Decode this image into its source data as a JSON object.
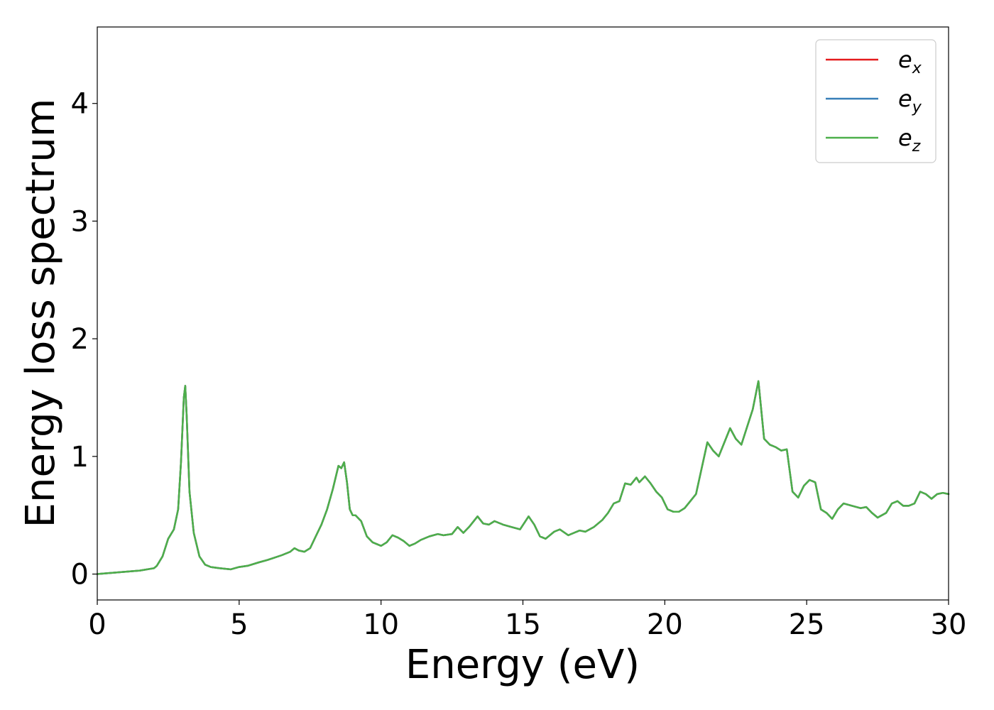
{
  "chart_data": {
    "type": "line",
    "xlabel": "Energy (eV)",
    "ylabel": "Energy loss spectrum",
    "xlim": [
      0,
      30
    ],
    "ylim": [
      -0.22,
      4.65
    ],
    "xticks": [
      0,
      5,
      10,
      15,
      20,
      25,
      30
    ],
    "yticks": [
      0,
      1,
      2,
      3,
      4
    ],
    "grid": false,
    "legend_position": "top-right",
    "series": [
      {
        "name": "e",
        "subscript": "x",
        "color": "#e41a1c"
      },
      {
        "name": "e",
        "subscript": "y",
        "color": "#377eb8"
      },
      {
        "name": "e",
        "subscript": "z",
        "color": "#4daf4a"
      }
    ],
    "x": [
      0,
      0.5,
      1,
      1.5,
      2,
      2.1,
      2.3,
      2.5,
      2.7,
      2.85,
      2.95,
      3.05,
      3.1,
      3.15,
      3.25,
      3.4,
      3.6,
      3.8,
      4,
      4.3,
      4.7,
      5,
      5.3,
      5.7,
      6,
      6.5,
      6.8,
      6.95,
      7.1,
      7.3,
      7.5,
      7.7,
      7.9,
      8.1,
      8.3,
      8.5,
      8.6,
      8.7,
      8.8,
      8.9,
      9,
      9.1,
      9.3,
      9.5,
      9.7,
      10,
      10.2,
      10.4,
      10.6,
      10.8,
      11,
      11.2,
      11.4,
      11.7,
      12,
      12.2,
      12.5,
      12.7,
      12.9,
      13.1,
      13.4,
      13.6,
      13.8,
      14,
      14.3,
      14.6,
      14.9,
      15.2,
      15.4,
      15.6,
      15.8,
      16.1,
      16.3,
      16.6,
      16.8,
      17,
      17.2,
      17.5,
      17.8,
      18,
      18.2,
      18.4,
      18.6,
      18.8,
      19,
      19.1,
      19.3,
      19.5,
      19.7,
      19.9,
      20.1,
      20.3,
      20.5,
      20.7,
      20.9,
      21.1,
      21.3,
      21.5,
      21.7,
      21.9,
      22.1,
      22.3,
      22.5,
      22.7,
      22.9,
      23.1,
      23.3,
      23.5,
      23.7,
      23.9,
      24.1,
      24.3,
      24.5,
      24.7,
      24.9,
      25.1,
      25.3,
      25.5,
      25.7,
      25.9,
      26.1,
      26.3,
      26.6,
      26.9,
      27.1,
      27.3,
      27.5,
      27.8,
      28,
      28.2,
      28.4,
      28.6,
      28.8,
      29,
      29.2,
      29.4,
      29.6,
      29.8,
      30
    ],
    "y": [
      0,
      0.01,
      0.02,
      0.03,
      0.05,
      0.07,
      0.15,
      0.3,
      0.38,
      0.55,
      0.95,
      1.5,
      1.6,
      1.35,
      0.7,
      0.35,
      0.15,
      0.08,
      0.06,
      0.05,
      0.04,
      0.06,
      0.07,
      0.1,
      0.12,
      0.16,
      0.19,
      0.22,
      0.2,
      0.19,
      0.22,
      0.32,
      0.42,
      0.55,
      0.72,
      0.92,
      0.9,
      0.95,
      0.78,
      0.55,
      0.5,
      0.5,
      0.45,
      0.32,
      0.27,
      0.24,
      0.27,
      0.33,
      0.31,
      0.28,
      0.24,
      0.26,
      0.29,
      0.32,
      0.34,
      0.33,
      0.34,
      0.4,
      0.35,
      0.4,
      0.49,
      0.43,
      0.42,
      0.45,
      0.42,
      0.4,
      0.38,
      0.49,
      0.42,
      0.32,
      0.3,
      0.36,
      0.38,
      0.33,
      0.35,
      0.37,
      0.36,
      0.4,
      0.46,
      0.52,
      0.6,
      0.62,
      0.77,
      0.76,
      0.82,
      0.78,
      0.83,
      0.77,
      0.7,
      0.65,
      0.55,
      0.53,
      0.53,
      0.56,
      0.62,
      0.68,
      0.9,
      1.12,
      1.05,
      1.0,
      1.12,
      1.24,
      1.15,
      1.1,
      1.25,
      1.4,
      1.64,
      1.15,
      1.1,
      1.08,
      1.05,
      1.06,
      0.7,
      0.65,
      0.75,
      0.8,
      0.78,
      0.55,
      0.52,
      0.47,
      0.55,
      0.6,
      0.58,
      0.56,
      0.57,
      0.52,
      0.48,
      0.52,
      0.6,
      0.62,
      0.58,
      0.58,
      0.6,
      0.7,
      0.68,
      0.64,
      0.68,
      0.69,
      0.68
    ]
  }
}
